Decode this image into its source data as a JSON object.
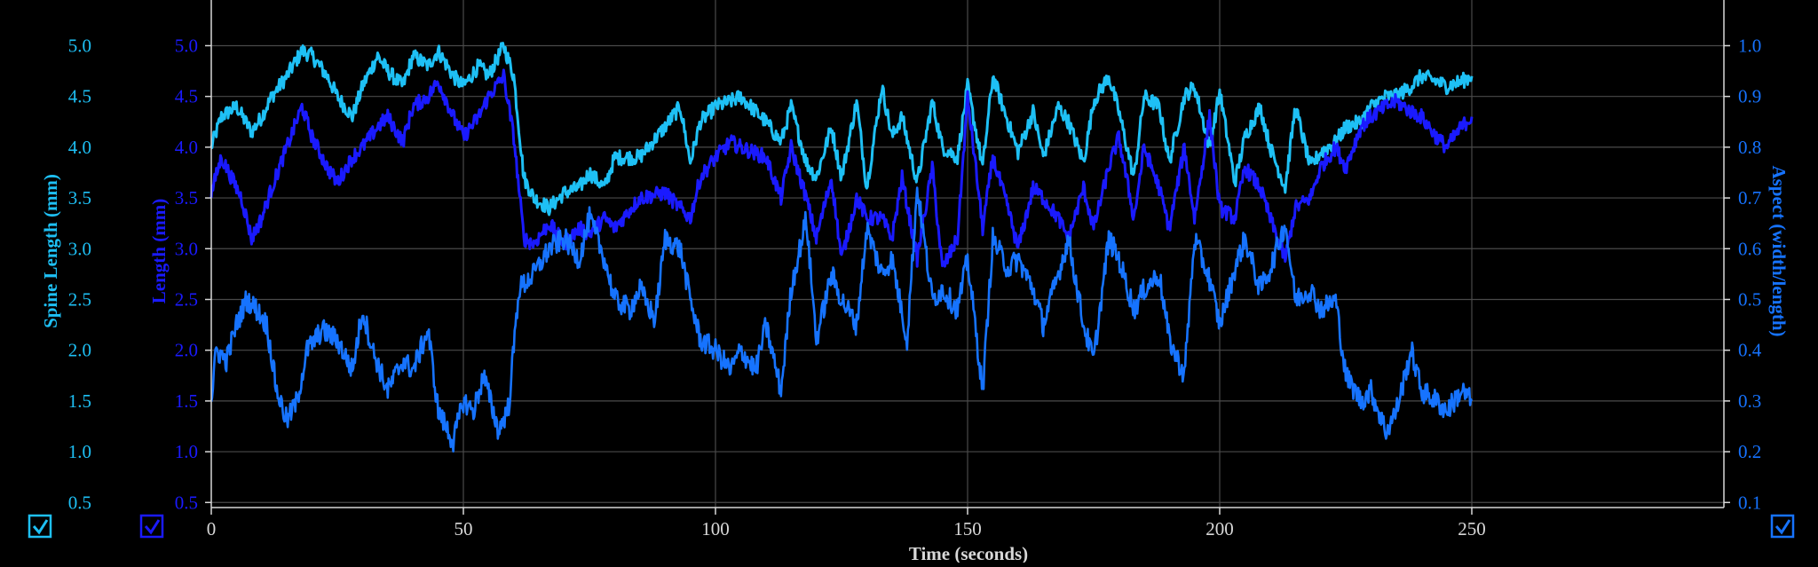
{
  "chart_data": {
    "type": "line",
    "xlabel": "Time (seconds)",
    "x_ticks": [
      "0",
      "50",
      "100",
      "150",
      "200",
      "250"
    ],
    "xlim": [
      0,
      300
    ],
    "grid": true,
    "axes": [
      {
        "id": "spine",
        "label": "Spine Length (mm)",
        "color": "#1ec0f5",
        "ylim": [
          0.45,
          5.45
        ],
        "ticks": [
          "0.5",
          "1.0",
          "1.5",
          "2.0",
          "2.5",
          "3.0",
          "3.5",
          "4.0",
          "4.5",
          "5.0"
        ],
        "checked": true
      },
      {
        "id": "length",
        "label": "Length (mm)",
        "color": "#1a1aff",
        "ylim": [
          0.45,
          5.45
        ],
        "ticks": [
          "0.5",
          "1.0",
          "1.5",
          "2.0",
          "2.5",
          "3.0",
          "3.5",
          "4.0",
          "4.5",
          "5.0"
        ],
        "checked": true
      },
      {
        "id": "aspect",
        "label": "Aspect (width/length)",
        "color": "#1673ff",
        "ylim": [
          0.09,
          1.09
        ],
        "ticks": [
          "0.1",
          "0.2",
          "0.3",
          "0.4",
          "0.5",
          "0.6",
          "0.7",
          "0.8",
          "0.9",
          "1.0"
        ],
        "checked": true
      }
    ],
    "series": [
      {
        "axis": "spine",
        "color": "#1ec0f5",
        "x": [
          0,
          2,
          5,
          8,
          10,
          12,
          15,
          18,
          20,
          23,
          25,
          28,
          30,
          33,
          35,
          38,
          40,
          43,
          45,
          48,
          50,
          53,
          55,
          58,
          60,
          62,
          64,
          67,
          70,
          73,
          75,
          78,
          80,
          85,
          90,
          93,
          95,
          97,
          100,
          103,
          105,
          110,
          113,
          115,
          118,
          120,
          123,
          125,
          128,
          130,
          133,
          135,
          137,
          140,
          143,
          145,
          148,
          150,
          153,
          155,
          158,
          160,
          163,
          165,
          168,
          170,
          173,
          175,
          178,
          180,
          183,
          185,
          188,
          190,
          193,
          195,
          198,
          200,
          203,
          205,
          208,
          210,
          213,
          215,
          218,
          220,
          223,
          225,
          228,
          230,
          233,
          235,
          238,
          240,
          243,
          245,
          248,
          250
        ],
        "y": [
          4.0,
          4.3,
          4.4,
          4.15,
          4.3,
          4.5,
          4.7,
          4.95,
          4.9,
          4.7,
          4.5,
          4.3,
          4.6,
          4.9,
          4.75,
          4.6,
          4.9,
          4.8,
          4.95,
          4.7,
          4.6,
          4.8,
          4.7,
          5.0,
          4.7,
          3.7,
          3.5,
          3.4,
          3.55,
          3.6,
          3.75,
          3.6,
          3.9,
          3.9,
          4.2,
          4.4,
          3.85,
          4.25,
          4.4,
          4.45,
          4.5,
          4.25,
          4.05,
          4.4,
          3.85,
          3.7,
          4.2,
          3.7,
          4.45,
          3.6,
          4.6,
          4.1,
          4.3,
          3.65,
          4.45,
          4.0,
          3.9,
          4.6,
          3.8,
          4.7,
          4.25,
          3.95,
          4.35,
          3.9,
          4.4,
          4.25,
          3.85,
          4.45,
          4.7,
          4.35,
          3.7,
          4.5,
          4.4,
          3.85,
          4.5,
          4.6,
          4.0,
          4.55,
          3.65,
          4.1,
          4.4,
          4.0,
          3.6,
          4.4,
          3.8,
          3.95,
          4.05,
          4.2,
          4.25,
          4.4,
          4.5,
          4.5,
          4.6,
          4.7,
          4.65,
          4.6,
          4.65,
          4.7
        ]
      },
      {
        "axis": "length",
        "color": "#1a1aff",
        "x": [
          0,
          2,
          4,
          6,
          8,
          10,
          12,
          15,
          18,
          20,
          23,
          25,
          28,
          30,
          33,
          35,
          38,
          40,
          43,
          45,
          48,
          50,
          53,
          55,
          58,
          60,
          62,
          64,
          67,
          70,
          73,
          75,
          78,
          80,
          85,
          90,
          93,
          95,
          97,
          100,
          103,
          105,
          110,
          113,
          115,
          118,
          120,
          123,
          125,
          128,
          130,
          133,
          135,
          137,
          140,
          143,
          145,
          148,
          150,
          153,
          155,
          158,
          160,
          163,
          165,
          168,
          170,
          173,
          175,
          178,
          180,
          183,
          185,
          188,
          190,
          193,
          195,
          198,
          200,
          203,
          205,
          208,
          210,
          213,
          215,
          218,
          220,
          223,
          225,
          228,
          230,
          233,
          235,
          238,
          240,
          243,
          245,
          248,
          250
        ],
        "y": [
          3.55,
          3.9,
          3.7,
          3.5,
          3.1,
          3.3,
          3.6,
          4.0,
          4.4,
          4.1,
          3.8,
          3.65,
          3.9,
          4.0,
          4.2,
          4.3,
          4.05,
          4.4,
          4.5,
          4.65,
          4.3,
          4.1,
          4.3,
          4.5,
          4.7,
          4.1,
          3.1,
          3.05,
          3.25,
          3.05,
          3.2,
          3.15,
          3.3,
          3.2,
          3.5,
          3.55,
          3.4,
          3.3,
          3.7,
          3.9,
          4.05,
          4.0,
          3.9,
          3.5,
          4.0,
          3.5,
          3.1,
          3.7,
          2.9,
          3.5,
          3.3,
          3.3,
          3.1,
          3.7,
          2.9,
          3.8,
          2.8,
          3.1,
          4.5,
          3.2,
          3.9,
          3.4,
          3.0,
          3.6,
          3.5,
          3.3,
          3.1,
          3.6,
          3.2,
          3.8,
          4.1,
          3.3,
          4.0,
          3.6,
          3.2,
          4.0,
          3.3,
          4.3,
          3.4,
          3.3,
          3.8,
          3.6,
          3.3,
          2.9,
          3.4,
          3.5,
          3.8,
          4.0,
          3.8,
          4.2,
          4.3,
          4.4,
          4.45,
          4.35,
          4.3,
          4.1,
          4.0,
          4.2,
          4.3
        ]
      },
      {
        "axis": "aspect",
        "color": "#1673ff",
        "x": [
          0,
          1,
          3,
          5,
          7,
          9,
          11,
          13,
          15,
          17,
          19,
          22,
          25,
          28,
          30,
          32,
          35,
          38,
          40,
          43,
          45,
          48,
          50,
          52,
          54,
          57,
          59,
          61,
          64,
          67,
          70,
          73,
          75,
          78,
          80,
          83,
          85,
          88,
          90,
          93,
          95,
          97,
          100,
          103,
          105,
          108,
          110,
          113,
          115,
          118,
          120,
          123,
          125,
          128,
          130,
          133,
          135,
          138,
          140,
          143,
          145,
          148,
          150,
          153,
          155,
          158,
          160,
          163,
          165,
          168,
          170,
          173,
          175,
          178,
          180,
          183,
          185,
          188,
          190,
          193,
          195,
          198,
          200,
          203,
          205,
          208,
          210,
          213,
          215,
          218,
          220,
          223,
          225,
          228,
          230,
          233,
          235,
          238,
          240,
          243,
          245,
          248,
          250
        ],
        "y": [
          0.3,
          0.4,
          0.38,
          0.45,
          0.5,
          0.48,
          0.45,
          0.32,
          0.26,
          0.3,
          0.4,
          0.44,
          0.42,
          0.36,
          0.48,
          0.4,
          0.32,
          0.38,
          0.36,
          0.44,
          0.28,
          0.22,
          0.3,
          0.28,
          0.35,
          0.24,
          0.29,
          0.52,
          0.55,
          0.6,
          0.62,
          0.58,
          0.66,
          0.58,
          0.5,
          0.48,
          0.52,
          0.46,
          0.62,
          0.6,
          0.5,
          0.42,
          0.4,
          0.36,
          0.4,
          0.36,
          0.45,
          0.32,
          0.52,
          0.66,
          0.42,
          0.55,
          0.5,
          0.45,
          0.64,
          0.55,
          0.58,
          0.42,
          0.72,
          0.5,
          0.52,
          0.48,
          0.58,
          0.32,
          0.62,
          0.56,
          0.58,
          0.52,
          0.45,
          0.55,
          0.62,
          0.45,
          0.38,
          0.62,
          0.58,
          0.48,
          0.52,
          0.55,
          0.42,
          0.35,
          0.62,
          0.54,
          0.45,
          0.56,
          0.62,
          0.52,
          0.56,
          0.65,
          0.5,
          0.52,
          0.48,
          0.5,
          0.35,
          0.3,
          0.32,
          0.24,
          0.28,
          0.4,
          0.32,
          0.3,
          0.28,
          0.32,
          0.3
        ]
      }
    ]
  }
}
